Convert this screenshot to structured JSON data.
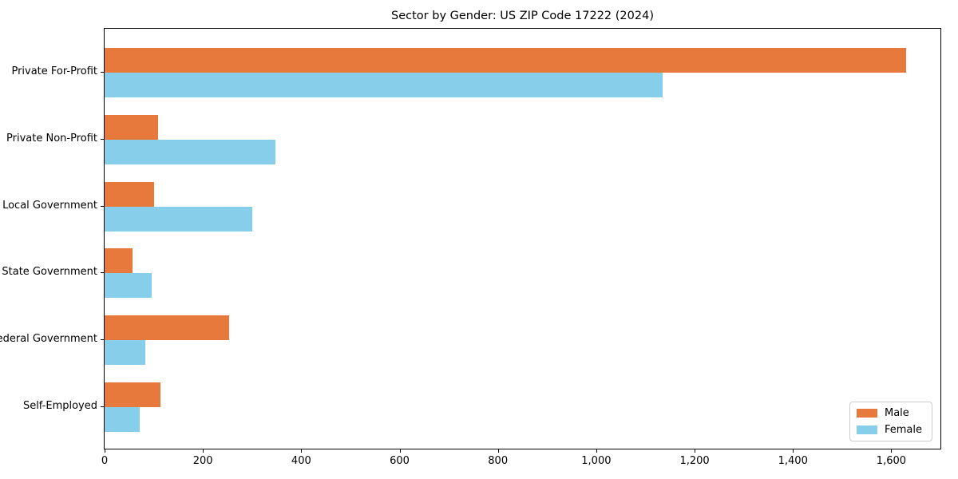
{
  "title": "Sector by Gender: US ZIP Code 17222 (2024)",
  "colors": {
    "male": "#E8793D",
    "female": "#87CEEB",
    "axis": "#000000",
    "legend_border": "#cccccc",
    "background": "#ffffff"
  },
  "chart_data": {
    "type": "bar",
    "orientation": "horizontal",
    "title": "Sector by Gender: US ZIP Code 17222 (2024)",
    "categories": [
      "Private For-Profit",
      "Private Non-Profit",
      "Local Government",
      "State Government",
      "Federal Government",
      "Self-Employed"
    ],
    "series": [
      {
        "name": "Male",
        "color": "#E8793D",
        "values": [
          1630,
          108,
          100,
          57,
          254,
          113
        ]
      },
      {
        "name": "Female",
        "color": "#87CEEB",
        "values": [
          1135,
          348,
          300,
          96,
          83,
          71
        ]
      }
    ],
    "xlabel": "",
    "ylabel": "",
    "xlim": [
      0,
      1700
    ],
    "xticks": [
      0,
      200,
      400,
      600,
      800,
      1000,
      1200,
      1400,
      1600
    ],
    "xtick_labels": [
      "0",
      "200",
      "400",
      "600",
      "800",
      "1,000",
      "1,200",
      "1,400",
      "1,600"
    ],
    "grid": false,
    "legend_position": "lower right",
    "legend_labels": [
      "Male",
      "Female"
    ]
  }
}
